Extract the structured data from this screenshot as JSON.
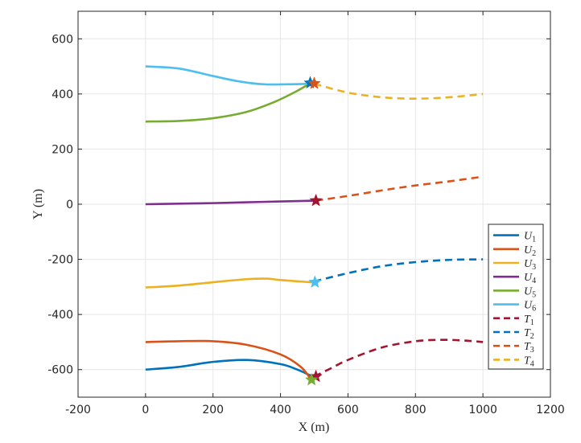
{
  "chart_data": {
    "type": "line",
    "title": "",
    "xlabel": "X (m)",
    "ylabel": "Y (m)",
    "xlim": [
      -200,
      1200
    ],
    "ylim": [
      -700,
      700
    ],
    "grid": true,
    "legend_position": "bottom-right",
    "x_ticks": [
      -200,
      0,
      200,
      400,
      600,
      800,
      1000,
      1200
    ],
    "y_ticks": [
      -600,
      -400,
      -200,
      0,
      200,
      400,
      600
    ],
    "series": [
      {
        "name": "U",
        "sub": "1",
        "color": "#0072BD",
        "style": "solid",
        "points": [
          [
            0,
            -600
          ],
          [
            100,
            -590
          ],
          [
            200,
            -572
          ],
          [
            300,
            -565
          ],
          [
            400,
            -580
          ],
          [
            450,
            -600
          ],
          [
            500,
            -628
          ]
        ]
      },
      {
        "name": "U",
        "sub": "2",
        "color": "#D95319",
        "style": "solid",
        "points": [
          [
            0,
            -500
          ],
          [
            100,
            -497
          ],
          [
            200,
            -497
          ],
          [
            300,
            -510
          ],
          [
            400,
            -545
          ],
          [
            460,
            -590
          ],
          [
            490,
            -635
          ]
        ]
      },
      {
        "name": "U",
        "sub": "3",
        "color": "#EDB120",
        "style": "solid",
        "points": [
          [
            0,
            -302
          ],
          [
            100,
            -295
          ],
          [
            200,
            -283
          ],
          [
            300,
            -272
          ],
          [
            360,
            -270
          ],
          [
            400,
            -275
          ],
          [
            500,
            -284
          ]
        ]
      },
      {
        "name": "U",
        "sub": "4",
        "color": "#7E2F8E",
        "style": "solid",
        "points": [
          [
            0,
            0
          ],
          [
            100,
            2
          ],
          [
            200,
            4
          ],
          [
            300,
            7
          ],
          [
            400,
            10
          ],
          [
            505,
            13
          ]
        ]
      },
      {
        "name": "U",
        "sub": "5",
        "color": "#77AC30",
        "style": "solid",
        "points": [
          [
            0,
            300
          ],
          [
            100,
            302
          ],
          [
            200,
            312
          ],
          [
            300,
            335
          ],
          [
            380,
            370
          ],
          [
            440,
            405
          ],
          [
            490,
            440
          ]
        ]
      },
      {
        "name": "U",
        "sub": "6",
        "color": "#4DBEEE",
        "style": "solid",
        "points": [
          [
            0,
            500
          ],
          [
            100,
            492
          ],
          [
            200,
            465
          ],
          [
            280,
            445
          ],
          [
            350,
            435
          ],
          [
            420,
            435
          ],
          [
            490,
            437
          ]
        ]
      },
      {
        "name": "T",
        "sub": "1",
        "color": "#A2142F",
        "style": "dashed",
        "points": [
          [
            500,
            -625
          ],
          [
            550,
            -595
          ],
          [
            600,
            -565
          ],
          [
            700,
            -520
          ],
          [
            800,
            -497
          ],
          [
            880,
            -492
          ],
          [
            950,
            -495
          ],
          [
            1000,
            -500
          ]
        ]
      },
      {
        "name": "T",
        "sub": "2",
        "color": "#0072BD",
        "style": "dashed",
        "points": [
          [
            500,
            -280
          ],
          [
            600,
            -250
          ],
          [
            700,
            -225
          ],
          [
            800,
            -210
          ],
          [
            900,
            -202
          ],
          [
            1000,
            -200
          ]
        ]
      },
      {
        "name": "T",
        "sub": "3",
        "color": "#D95319",
        "style": "dashed",
        "points": [
          [
            505,
            13
          ],
          [
            600,
            30
          ],
          [
            700,
            50
          ],
          [
            800,
            68
          ],
          [
            900,
            83
          ],
          [
            1000,
            100
          ]
        ]
      },
      {
        "name": "T",
        "sub": "4",
        "color": "#EDB120",
        "style": "dashed",
        "points": [
          [
            500,
            437
          ],
          [
            600,
            405
          ],
          [
            700,
            388
          ],
          [
            800,
            383
          ],
          [
            900,
            388
          ],
          [
            1000,
            400
          ]
        ]
      }
    ],
    "markers": [
      {
        "label": "star-t1-target",
        "color": "#A2142F",
        "x": 505,
        "y": -625
      },
      {
        "label": "star-u5-end",
        "color": "#77AC30",
        "x": 492,
        "y": -637
      },
      {
        "label": "star-t2-target",
        "color": "#4DBEEE",
        "x": 502,
        "y": -283
      },
      {
        "label": "star-t3-target",
        "color": "#A2142F",
        "x": 505,
        "y": 13
      },
      {
        "label": "star-u6-end",
        "color": "#0072BD",
        "x": 488,
        "y": 440
      },
      {
        "label": "star-t4-target",
        "color": "#D95319",
        "x": 500,
        "y": 438
      }
    ]
  }
}
